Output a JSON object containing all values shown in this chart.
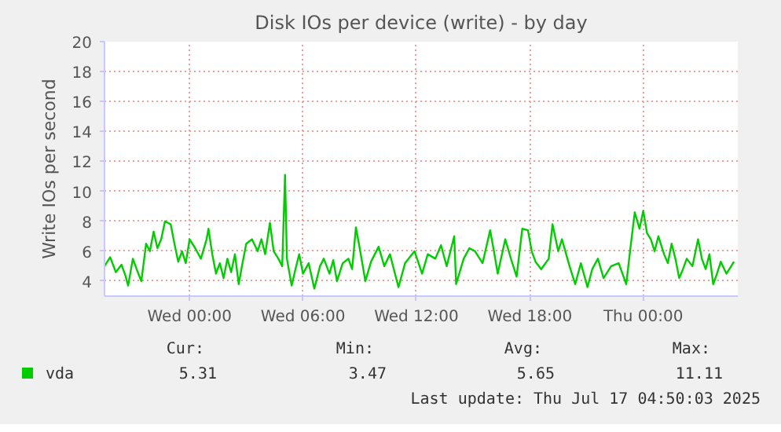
{
  "chart_data": {
    "type": "line",
    "title": "Disk IOs per device (write) - by day",
    "ylabel": "Write IOs per second",
    "xlim": [
      "2025-07-15T19:30",
      "2025-07-17T05:00"
    ],
    "ylim": [
      3,
      20
    ],
    "yticks": [
      4,
      6,
      8,
      10,
      12,
      14,
      16,
      18,
      20
    ],
    "xticks": [
      {
        "value": "2025-07-16T00:00",
        "label": "Wed 00:00"
      },
      {
        "value": "2025-07-16T06:00",
        "label": "Wed 06:00"
      },
      {
        "value": "2025-07-16T12:00",
        "label": "Wed 12:00"
      },
      {
        "value": "2025-07-16T18:00",
        "label": "Wed 18:00"
      },
      {
        "value": "2025-07-17T00:00",
        "label": "Thu 00:00"
      }
    ],
    "grid": true,
    "legend": "bottom",
    "marker": "none",
    "line_style": "solid",
    "annotations": [
      "Cur:",
      "Min:",
      "Avg:",
      "Max:",
      "5.31",
      "3.47",
      "5.65",
      "11.11",
      "Last update: Thu Jul 17 04:50:03 2025"
    ],
    "series": [
      {
        "name": "vda",
        "color": "#00cc00",
        "x": [
          "2025-07-15T19:30",
          "2025-07-15T19:48",
          "2025-07-15T20:06",
          "2025-07-15T20:24",
          "2025-07-15T20:36",
          "2025-07-15T20:45",
          "2025-07-15T21:00",
          "2025-07-15T21:12",
          "2025-07-15T21:27",
          "2025-07-15T21:42",
          "2025-07-15T21:54",
          "2025-07-15T22:06",
          "2025-07-15T22:18",
          "2025-07-15T22:30",
          "2025-07-15T22:42",
          "2025-07-15T23:00",
          "2025-07-15T23:12",
          "2025-07-15T23:24",
          "2025-07-15T23:36",
          "2025-07-15T23:48",
          "2025-07-16T00:00",
          "2025-07-16T00:18",
          "2025-07-16T00:36",
          "2025-07-16T00:54",
          "2025-07-16T01:00",
          "2025-07-16T01:12",
          "2025-07-16T01:24",
          "2025-07-16T01:36",
          "2025-07-16T01:48",
          "2025-07-16T02:00",
          "2025-07-16T02:12",
          "2025-07-16T02:24",
          "2025-07-16T02:36",
          "2025-07-16T02:48",
          "2025-07-16T03:00",
          "2025-07-16T03:18",
          "2025-07-16T03:36",
          "2025-07-16T03:48",
          "2025-07-16T04:00",
          "2025-07-16T04:15",
          "2025-07-16T04:27",
          "2025-07-16T04:42",
          "2025-07-16T04:54",
          "2025-07-16T05:03",
          "2025-07-16T05:09",
          "2025-07-16T05:24",
          "2025-07-16T05:36",
          "2025-07-16T05:48",
          "2025-07-16T06:00",
          "2025-07-16T06:18",
          "2025-07-16T06:36",
          "2025-07-16T06:54",
          "2025-07-16T07:06",
          "2025-07-16T07:24",
          "2025-07-16T07:36",
          "2025-07-16T07:48",
          "2025-07-16T08:06",
          "2025-07-16T08:24",
          "2025-07-16T08:36",
          "2025-07-16T08:48",
          "2025-07-16T09:00",
          "2025-07-16T09:18",
          "2025-07-16T09:36",
          "2025-07-16T10:00",
          "2025-07-16T10:18",
          "2025-07-16T10:36",
          "2025-07-16T11:03",
          "2025-07-16T11:24",
          "2025-07-16T11:54",
          "2025-07-16T12:18",
          "2025-07-16T12:36",
          "2025-07-16T13:00",
          "2025-07-16T13:18",
          "2025-07-16T13:36",
          "2025-07-16T14:00",
          "2025-07-16T14:06",
          "2025-07-16T14:30",
          "2025-07-16T14:48",
          "2025-07-16T15:06",
          "2025-07-16T15:30",
          "2025-07-16T15:54",
          "2025-07-16T16:06",
          "2025-07-16T16:18",
          "2025-07-16T16:42",
          "2025-07-16T17:00",
          "2025-07-16T17:18",
          "2025-07-16T17:36",
          "2025-07-16T17:54",
          "2025-07-16T18:06",
          "2025-07-16T18:18",
          "2025-07-16T18:36",
          "2025-07-16T19:00",
          "2025-07-16T19:12",
          "2025-07-16T19:30",
          "2025-07-16T19:42",
          "2025-07-16T20:06",
          "2025-07-16T20:24",
          "2025-07-16T20:42",
          "2025-07-16T21:03",
          "2025-07-16T21:18",
          "2025-07-16T21:36",
          "2025-07-16T21:54",
          "2025-07-16T22:18",
          "2025-07-16T22:42",
          "2025-07-16T22:54",
          "2025-07-16T23:06",
          "2025-07-16T23:18",
          "2025-07-16T23:33",
          "2025-07-16T23:48",
          "2025-07-17T00:00",
          "2025-07-17T00:12",
          "2025-07-17T00:24",
          "2025-07-17T00:36",
          "2025-07-17T00:48",
          "2025-07-17T01:06",
          "2025-07-17T01:18",
          "2025-07-17T01:30",
          "2025-07-17T01:42",
          "2025-07-17T01:54",
          "2025-07-17T02:06",
          "2025-07-17T02:18",
          "2025-07-17T02:36",
          "2025-07-17T02:54",
          "2025-07-17T03:06",
          "2025-07-17T03:18",
          "2025-07-17T03:30",
          "2025-07-17T03:42",
          "2025-07-17T03:54",
          "2025-07-17T04:06",
          "2025-07-17T04:24",
          "2025-07-17T04:36",
          "2025-07-17T04:48"
        ],
        "values": [
          5.0,
          5.6,
          4.6,
          5.1,
          4.4,
          3.7,
          5.5,
          4.8,
          4.0,
          6.5,
          6.0,
          7.3,
          6.2,
          6.8,
          8.0,
          7.8,
          6.5,
          5.3,
          6.0,
          5.2,
          6.8,
          6.2,
          5.5,
          6.8,
          7.5,
          5.8,
          4.5,
          5.2,
          4.2,
          5.5,
          4.6,
          5.8,
          3.8,
          5.2,
          6.5,
          6.8,
          6.0,
          6.8,
          5.8,
          7.9,
          6.0,
          5.5,
          5.0,
          11.1,
          5.5,
          3.7,
          4.8,
          5.8,
          4.5,
          5.2,
          3.5,
          5.0,
          5.5,
          4.5,
          5.4,
          4.0,
          5.2,
          5.5,
          4.8,
          7.6,
          6.2,
          4.0,
          5.3,
          6.3,
          5.0,
          5.8,
          3.6,
          5.2,
          6.0,
          4.5,
          5.8,
          5.5,
          6.4,
          5.0,
          7.0,
          3.8,
          5.5,
          6.2,
          6.0,
          5.2,
          7.4,
          6.0,
          4.5,
          6.8,
          5.5,
          4.3,
          7.5,
          7.4,
          6.0,
          5.3,
          4.8,
          5.5,
          7.8,
          6.0,
          6.8,
          5.0,
          3.8,
          5.2,
          3.6,
          4.8,
          5.5,
          4.2,
          5.0,
          5.2,
          4.5,
          3.8,
          6.0,
          8.6,
          7.5,
          8.7,
          7.2,
          6.8,
          6.0,
          7.0,
          5.8,
          5.2,
          6.5,
          5.5,
          4.2,
          4.8,
          5.5,
          5.0,
          6.8,
          5.5,
          4.8,
          5.8,
          3.8,
          4.5,
          5.3,
          4.5,
          4.9,
          5.3
        ]
      }
    ]
  }
}
